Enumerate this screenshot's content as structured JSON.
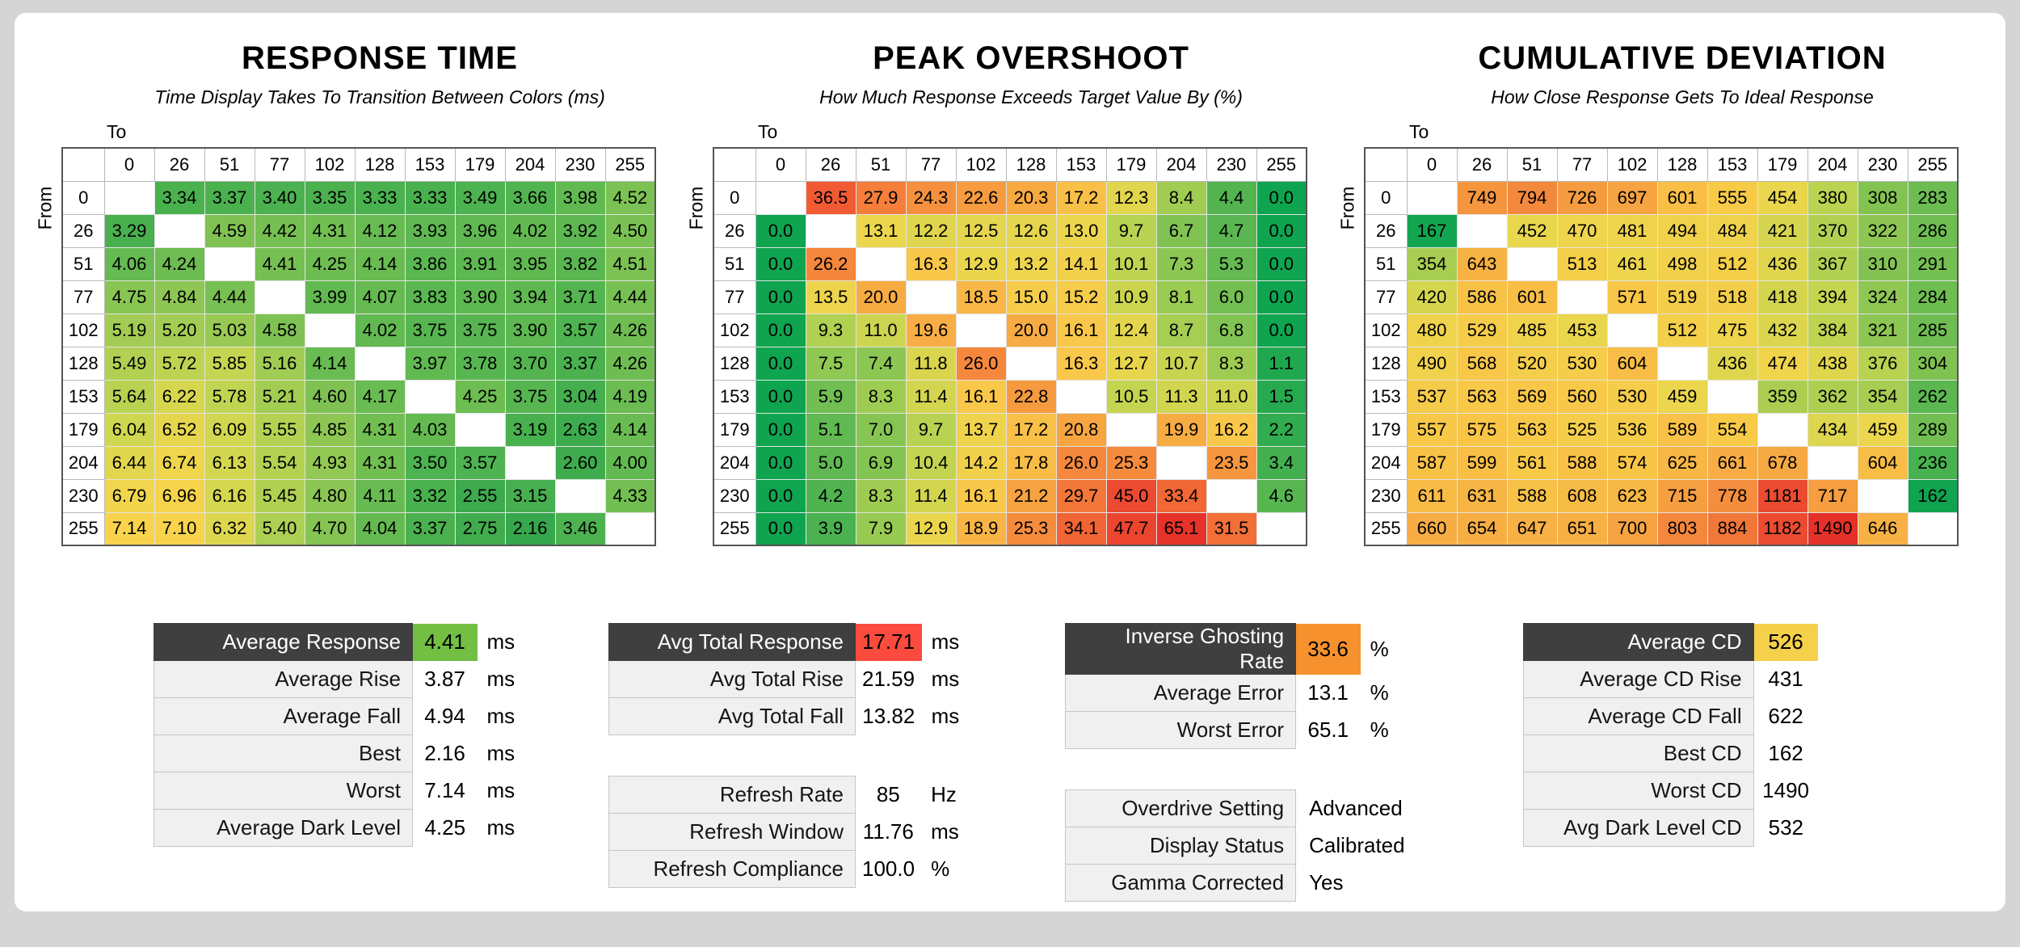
{
  "page": {
    "background": "#d5d5d5",
    "panel_background": "#ffffff"
  },
  "chart_data": [
    {
      "type": "heatmap",
      "title": "RESPONSE TIME",
      "subtitle": "Time Display Takes To Transition Between Colors (ms)",
      "x_label": "To",
      "y_label": "From",
      "decimals": 2,
      "x": [
        "0",
        "26",
        "51",
        "77",
        "102",
        "128",
        "153",
        "179",
        "204",
        "230",
        "255"
      ],
      "y": [
        "0",
        "26",
        "51",
        "77",
        "102",
        "128",
        "153",
        "179",
        "204",
        "230",
        "255"
      ],
      "values": [
        [
          null,
          3.34,
          3.37,
          3.4,
          3.35,
          3.33,
          3.33,
          3.49,
          3.66,
          3.98,
          4.52
        ],
        [
          3.29,
          null,
          4.59,
          4.42,
          4.31,
          4.12,
          3.93,
          3.96,
          4.02,
          3.92,
          4.5
        ],
        [
          4.06,
          4.24,
          null,
          4.41,
          4.25,
          4.14,
          3.86,
          3.91,
          3.95,
          3.82,
          4.51
        ],
        [
          4.75,
          4.84,
          4.44,
          null,
          3.99,
          4.07,
          3.83,
          3.9,
          3.94,
          3.71,
          4.44
        ],
        [
          5.19,
          5.2,
          5.03,
          4.58,
          null,
          4.02,
          3.75,
          3.75,
          3.9,
          3.57,
          4.26
        ],
        [
          5.49,
          5.72,
          5.85,
          5.16,
          4.14,
          null,
          3.97,
          3.78,
          3.7,
          3.37,
          4.26
        ],
        [
          5.64,
          6.22,
          5.78,
          5.21,
          4.6,
          4.17,
          null,
          4.25,
          3.75,
          3.04,
          4.19
        ],
        [
          6.04,
          6.52,
          6.09,
          5.55,
          4.85,
          4.31,
          4.03,
          null,
          3.19,
          2.63,
          4.14
        ],
        [
          6.44,
          6.74,
          6.13,
          5.54,
          4.93,
          4.31,
          3.5,
          3.57,
          null,
          2.6,
          4.0
        ],
        [
          6.79,
          6.96,
          6.16,
          5.45,
          4.8,
          4.11,
          3.32,
          2.55,
          3.15,
          null,
          4.33
        ],
        [
          7.14,
          7.1,
          6.32,
          5.4,
          4.7,
          4.04,
          3.37,
          2.75,
          2.16,
          3.46,
          null
        ]
      ],
      "color_stops": [
        [
          2.0,
          "#33a64c"
        ],
        [
          3.6,
          "#4fb350"
        ],
        [
          4.6,
          "#7fc253"
        ],
        [
          5.3,
          "#a8ce53"
        ],
        [
          6.0,
          "#cdd750"
        ],
        [
          6.7,
          "#eed64d"
        ],
        [
          7.3,
          "#fdd24a"
        ]
      ]
    },
    {
      "type": "heatmap",
      "title": "PEAK OVERSHOOT",
      "subtitle": "How Much Response Exceeds Target Value By (%)",
      "x_label": "To",
      "y_label": "From",
      "decimals": 1,
      "x": [
        "0",
        "26",
        "51",
        "77",
        "102",
        "128",
        "153",
        "179",
        "204",
        "230",
        "255"
      ],
      "y": [
        "0",
        "26",
        "51",
        "77",
        "102",
        "128",
        "153",
        "179",
        "204",
        "230",
        "255"
      ],
      "values": [
        [
          null,
          36.5,
          27.9,
          24.3,
          22.6,
          20.3,
          17.2,
          12.3,
          8.4,
          4.4,
          0.0
        ],
        [
          0.0,
          null,
          13.1,
          12.2,
          12.5,
          12.6,
          13.0,
          9.7,
          6.7,
          4.7,
          0.0
        ],
        [
          0.0,
          26.2,
          null,
          16.3,
          12.9,
          13.2,
          14.1,
          10.1,
          7.3,
          5.3,
          0.0
        ],
        [
          0.0,
          13.5,
          20.0,
          null,
          18.5,
          15.0,
          15.2,
          10.9,
          8.1,
          6.0,
          0.0
        ],
        [
          0.0,
          9.3,
          11.0,
          19.6,
          null,
          20.0,
          16.1,
          12.4,
          8.7,
          6.8,
          0.0
        ],
        [
          0.0,
          7.5,
          7.4,
          11.8,
          26.0,
          null,
          16.3,
          12.7,
          10.7,
          8.3,
          1.1
        ],
        [
          0.0,
          5.9,
          8.3,
          11.4,
          16.1,
          22.8,
          null,
          10.5,
          11.3,
          11.0,
          1.5
        ],
        [
          0.0,
          5.1,
          7.0,
          9.7,
          13.7,
          17.2,
          20.8,
          null,
          19.9,
          16.2,
          2.2
        ],
        [
          0.0,
          5.0,
          6.9,
          10.4,
          14.2,
          17.8,
          26.0,
          25.3,
          null,
          23.5,
          3.4
        ],
        [
          0.0,
          4.2,
          8.3,
          11.4,
          16.1,
          21.2,
          29.7,
          45.0,
          33.4,
          null,
          4.6
        ],
        [
          0.0,
          3.9,
          7.9,
          12.9,
          18.9,
          25.3,
          34.1,
          47.7,
          65.1,
          31.5,
          null
        ]
      ],
      "color_stops": [
        [
          0,
          "#0fa44f"
        ],
        [
          4,
          "#4cb250"
        ],
        [
          7,
          "#86c553"
        ],
        [
          10,
          "#bdd451"
        ],
        [
          13,
          "#ecd64d"
        ],
        [
          16,
          "#f9c94a"
        ],
        [
          21,
          "#f7a441"
        ],
        [
          27,
          "#f4823b"
        ],
        [
          36,
          "#f05c34"
        ],
        [
          48,
          "#eb4430"
        ],
        [
          66,
          "#e5322a"
        ]
      ]
    },
    {
      "type": "heatmap",
      "title": "CUMULATIVE DEVIATION",
      "subtitle": "How Close Response Gets To Ideal Response",
      "x_label": "To",
      "y_label": "From",
      "decimals": 0,
      "x": [
        "0",
        "26",
        "51",
        "77",
        "102",
        "128",
        "153",
        "179",
        "204",
        "230",
        "255"
      ],
      "y": [
        "0",
        "26",
        "51",
        "77",
        "102",
        "128",
        "153",
        "179",
        "204",
        "230",
        "255"
      ],
      "values": [
        [
          null,
          749,
          794,
          726,
          697,
          601,
          555,
          454,
          380,
          308,
          283
        ],
        [
          167,
          null,
          452,
          470,
          481,
          494,
          484,
          421,
          370,
          322,
          286
        ],
        [
          354,
          643,
          null,
          513,
          461,
          498,
          512,
          436,
          367,
          310,
          291
        ],
        [
          420,
          586,
          601,
          null,
          571,
          519,
          518,
          418,
          394,
          324,
          284
        ],
        [
          480,
          529,
          485,
          453,
          null,
          512,
          475,
          432,
          384,
          321,
          285
        ],
        [
          490,
          568,
          520,
          530,
          604,
          null,
          436,
          474,
          438,
          376,
          304
        ],
        [
          537,
          563,
          569,
          560,
          530,
          459,
          null,
          359,
          362,
          354,
          262
        ],
        [
          557,
          575,
          563,
          525,
          536,
          589,
          554,
          null,
          434,
          459,
          289
        ],
        [
          587,
          599,
          561,
          588,
          574,
          625,
          661,
          678,
          null,
          604,
          236
        ],
        [
          611,
          631,
          588,
          608,
          623,
          715,
          778,
          1181,
          717,
          null,
          162
        ],
        [
          660,
          654,
          647,
          651,
          700,
          803,
          884,
          1182,
          1490,
          646,
          null
        ]
      ],
      "color_stops": [
        [
          160,
          "#0fa450"
        ],
        [
          250,
          "#52b450"
        ],
        [
          320,
          "#8cc653"
        ],
        [
          390,
          "#c3d550"
        ],
        [
          460,
          "#edd64d"
        ],
        [
          560,
          "#f8c948"
        ],
        [
          650,
          "#f7b044"
        ],
        [
          740,
          "#f59840"
        ],
        [
          820,
          "#f2823b"
        ],
        [
          1050,
          "#ee5c34"
        ],
        [
          1250,
          "#ea4430"
        ],
        [
          1500,
          "#e4302a"
        ]
      ]
    }
  ],
  "summary_tables": [
    {
      "id": "response-summary",
      "rows": [
        {
          "label": "Average Response",
          "value": "4.41",
          "unit": "ms",
          "header": true,
          "value_bg": "#72bf44"
        },
        {
          "label": "Average Rise",
          "value": "3.87",
          "unit": "ms"
        },
        {
          "label": "Average Fall",
          "value": "4.94",
          "unit": "ms"
        },
        {
          "label": "Best",
          "value": "2.16",
          "unit": "ms"
        },
        {
          "label": "Worst",
          "value": "7.14",
          "unit": "ms"
        },
        {
          "label": "Average Dark Level",
          "value": "4.25",
          "unit": "ms"
        }
      ]
    },
    {
      "id": "total-response-summary",
      "rows": [
        {
          "label": "Avg Total Response",
          "value": "17.71",
          "unit": "ms",
          "header": true,
          "value_bg": "#fa4b3e"
        },
        {
          "label": "Avg Total Rise",
          "value": "21.59",
          "unit": "ms"
        },
        {
          "label": "Avg Total Fall",
          "value": "13.82",
          "unit": "ms"
        }
      ]
    },
    {
      "id": "refresh-summary",
      "rows": [
        {
          "label": "Refresh Rate",
          "value": "85",
          "unit": "Hz"
        },
        {
          "label": "Refresh Window",
          "value": "11.76",
          "unit": "ms"
        },
        {
          "label": "Refresh Compliance",
          "value": "100.0",
          "unit": "%"
        }
      ]
    },
    {
      "id": "overshoot-summary",
      "rows": [
        {
          "label": "Inverse Ghosting Rate",
          "value": "33.6",
          "unit": "%",
          "header": true,
          "value_bg": "#f7912d"
        },
        {
          "label": "Average Error",
          "value": "13.1",
          "unit": "%"
        },
        {
          "label": "Worst Error",
          "value": "65.1",
          "unit": "%"
        }
      ]
    },
    {
      "id": "settings-summary",
      "rows": [
        {
          "label": "Overdrive Setting",
          "value": "Advanced",
          "plain": true
        },
        {
          "label": "Display Status",
          "value": "Calibrated",
          "plain": true
        },
        {
          "label": "Gamma Corrected",
          "value": "Yes",
          "plain": true
        }
      ]
    },
    {
      "id": "cd-summary",
      "rows": [
        {
          "label": "Average CD",
          "value": "526",
          "header": true,
          "value_bg": "#f5d04b"
        },
        {
          "label": "Average CD Rise",
          "value": "431"
        },
        {
          "label": "Average CD Fall",
          "value": "622"
        },
        {
          "label": "Best CD",
          "value": "162"
        },
        {
          "label": "Worst CD",
          "value": "1490"
        },
        {
          "label": "Avg Dark Level CD",
          "value": "532"
        }
      ]
    }
  ]
}
